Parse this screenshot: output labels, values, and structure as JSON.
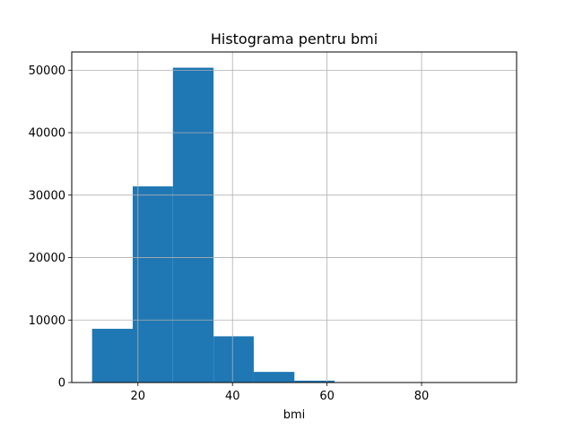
{
  "chart_data": {
    "type": "bar",
    "title": "Histograma pentru bmi",
    "xlabel": "bmi",
    "ylabel": "",
    "bins": [
      {
        "start": 10.3,
        "end": 18.9,
        "count": 8600
      },
      {
        "start": 18.9,
        "end": 27.4,
        "count": 31400
      },
      {
        "start": 27.4,
        "end": 36.0,
        "count": 50400
      },
      {
        "start": 36.0,
        "end": 44.5,
        "count": 7400
      },
      {
        "start": 44.5,
        "end": 53.1,
        "count": 1700
      },
      {
        "start": 53.1,
        "end": 61.6,
        "count": 300
      },
      {
        "start": 61.6,
        "end": 70.2,
        "count": 40
      },
      {
        "start": 70.2,
        "end": 78.7,
        "count": 15
      },
      {
        "start": 78.7,
        "end": 87.3,
        "count": 8
      },
      {
        "start": 87.3,
        "end": 95.8,
        "count": 4
      }
    ],
    "xlim": [
      6.0,
      100.1
    ],
    "ylim": [
      0,
      52920
    ],
    "xticks": [
      20,
      40,
      60,
      80
    ],
    "yticks": [
      0,
      10000,
      20000,
      30000,
      40000,
      50000
    ],
    "grid": true,
    "bar_color": "#1f77b4",
    "grid_color": "#b0b0b0"
  }
}
